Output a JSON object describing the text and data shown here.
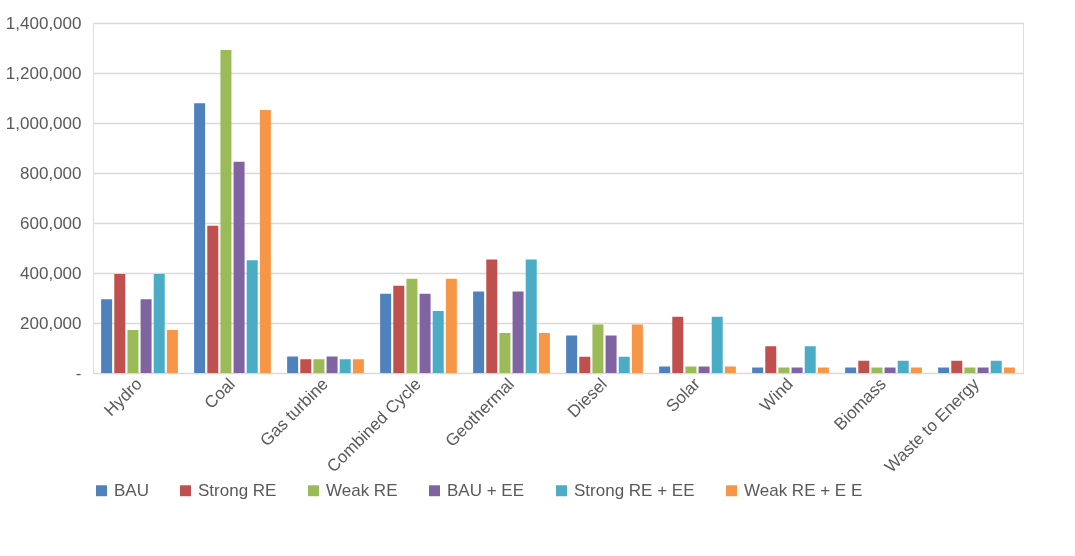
{
  "chart_data": {
    "type": "bar",
    "categories": [
      "Hydro",
      "Coal",
      "Gas turbine",
      "Combined Cycle",
      "Geothermal",
      "Diesel",
      "Solar",
      "Wind",
      "Biomass",
      "Waste to Energy"
    ],
    "series": [
      {
        "name": "BAU",
        "color": "#4f81bd",
        "values": [
          295000,
          1079000,
          66000,
          317000,
          326000,
          150000,
          26000,
          22000,
          22000,
          22000
        ]
      },
      {
        "name": "Strong RE",
        "color": "#c0504d",
        "values": [
          396000,
          589000,
          55000,
          349000,
          454000,
          65000,
          225000,
          107000,
          49000,
          49000
        ]
      },
      {
        "name": "Weak RE",
        "color": "#9bbb59",
        "values": [
          172000,
          1292000,
          55000,
          377000,
          160000,
          194000,
          26000,
          22000,
          22000,
          22000
        ]
      },
      {
        "name": "BAU + EE",
        "color": "#8064a2",
        "values": [
          295000,
          845000,
          66000,
          317000,
          326000,
          150000,
          26000,
          22000,
          22000,
          22000
        ]
      },
      {
        "name": "Strong RE + EE",
        "color": "#4bacc6",
        "values": [
          396000,
          451000,
          55000,
          248000,
          454000,
          65000,
          225000,
          107000,
          49000,
          49000
        ]
      },
      {
        "name": "Weak RE + E E",
        "color": "#f79646",
        "values": [
          172000,
          1052000,
          55000,
          377000,
          160000,
          194000,
          26000,
          22000,
          22000,
          22000
        ]
      }
    ],
    "ylim": [
      0,
      1400000
    ],
    "yticks": [
      {
        "value": 0,
        "label": "-"
      },
      {
        "value": 200000,
        "label": "200,000"
      },
      {
        "value": 400000,
        "label": "400,000"
      },
      {
        "value": 600000,
        "label": "600,000"
      },
      {
        "value": 800000,
        "label": "800,000"
      },
      {
        "value": 1000000,
        "label": "1,000,000"
      },
      {
        "value": 1200000,
        "label": "1,200,000"
      },
      {
        "value": 1400000,
        "label": "1,400,000"
      }
    ],
    "grid": "y",
    "legend": "bottom"
  }
}
